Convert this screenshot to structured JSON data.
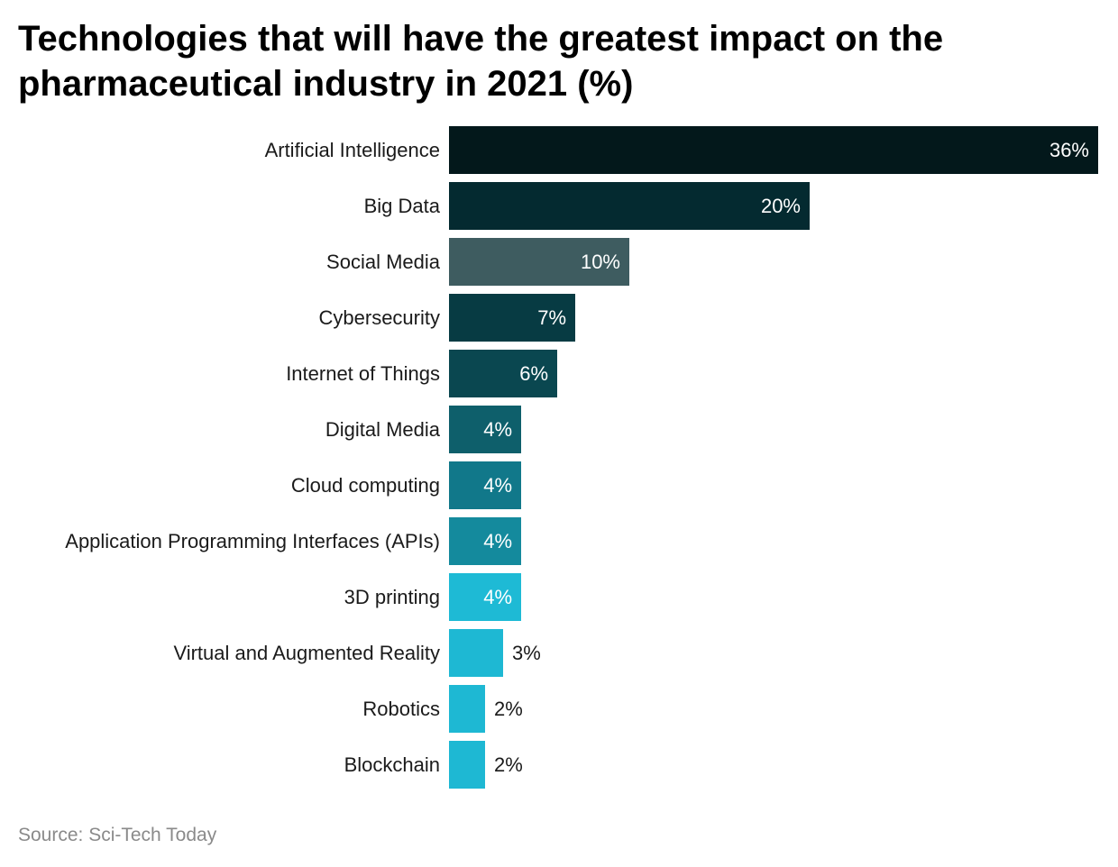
{
  "chart_data": {
    "type": "bar",
    "orientation": "horizontal",
    "title": "Technologies that will have the greatest impact on the pharmaceutical industry in 2021 (%)",
    "categories": [
      "Artificial Intelligence",
      "Big Data",
      "Social Media",
      "Cybersecurity",
      "Internet of Things",
      "Digital Media",
      "Cloud computing",
      "Application Programming Interfaces (APIs)",
      "3D printing",
      "Virtual and Augmented Reality",
      "Robotics",
      "Blockchain"
    ],
    "values": [
      36,
      20,
      10,
      7,
      6,
      4,
      4,
      4,
      4,
      3,
      2,
      2
    ],
    "value_labels": [
      "36%",
      "20%",
      "10%",
      "7%",
      "6%",
      "4%",
      "4%",
      "4%",
      "4%",
      "3%",
      "2%",
      "2%"
    ],
    "colors": [
      "#03181b",
      "#042a30",
      "#3e5c60",
      "#073b43",
      "#0a4750",
      "#0e5f6b",
      "#11788a",
      "#148a9d",
      "#1ebad5",
      "#1eb8d3",
      "#1eb8d3",
      "#1eb8d3"
    ],
    "xlim": [
      0,
      36
    ],
    "grid": false,
    "legend": "none"
  },
  "source": "Source: Sci-Tech Today"
}
